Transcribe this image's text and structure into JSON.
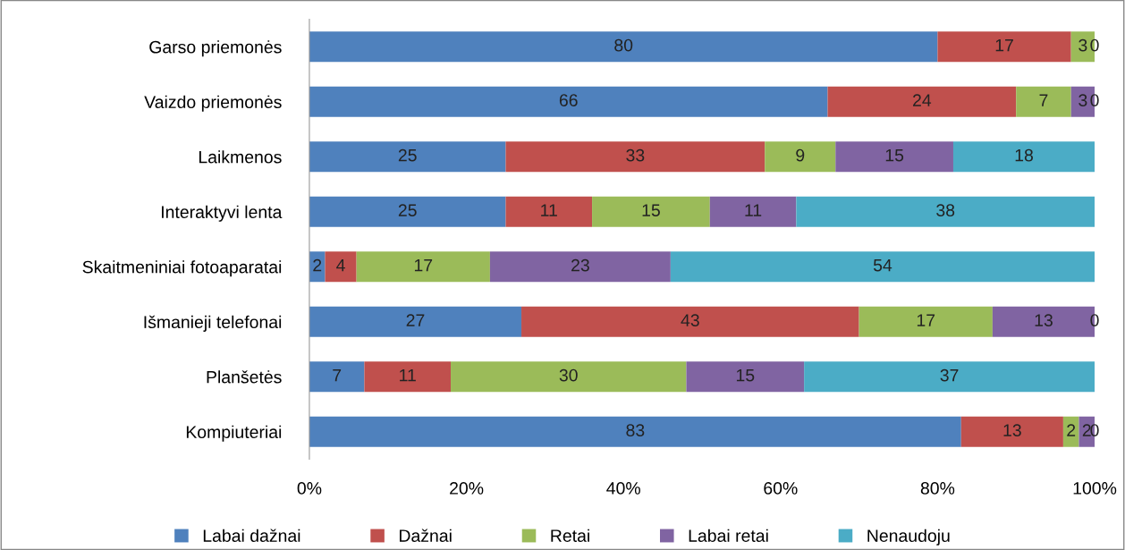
{
  "chart_data": {
    "type": "bar",
    "orientation": "horizontal",
    "stacked": true,
    "legend": "bottom",
    "grid": false,
    "categories": [
      "Garso priemonės",
      "Vaizdo priemonės",
      "Laikmenos",
      "Interaktyvi lenta",
      "Skaitmeniniai fotoaparatai",
      "Išmanieji telefonai",
      "Planšetės",
      "Kompiuteriai"
    ],
    "series": [
      {
        "name": "Labai dažnai",
        "color": "#4f81bd",
        "values": [
          80,
          66,
          25,
          25,
          2,
          27,
          7,
          83
        ],
        "value_labels": [
          "80",
          "66",
          "25",
          "25",
          "2",
          "27",
          "7",
          "83"
        ]
      },
      {
        "name": "Dažnai",
        "color": "#c0504d",
        "values": [
          17,
          24,
          33,
          11,
          4,
          43,
          11,
          13
        ],
        "value_labels": [
          "17",
          "24",
          "33",
          "11",
          "4",
          "43",
          "11",
          "13"
        ]
      },
      {
        "name": "Retai",
        "color": "#9bbb59",
        "values": [
          3,
          7,
          9,
          15,
          17,
          17,
          30,
          2
        ],
        "value_labels": [
          "3",
          "7",
          "9",
          "15",
          "17",
          "17",
          "30",
          "2"
        ]
      },
      {
        "name": "Labai retai",
        "color": "#8064a2",
        "values": [
          0,
          3,
          15,
          11,
          23,
          13,
          15,
          2
        ],
        "value_labels": [
          "0",
          "3",
          "15",
          "11",
          "23",
          "13",
          "15",
          "2"
        ]
      },
      {
        "name": "Nenaudoju",
        "color": "#4bacc6",
        "values": [
          0,
          0,
          18,
          38,
          54,
          0,
          37,
          0
        ],
        "value_labels": [
          null,
          "0",
          "18",
          "38",
          "54",
          "0",
          "37",
          "0"
        ]
      }
    ],
    "xlim": [
      0,
      100
    ],
    "xticks": [
      {
        "value": 0,
        "label": "0%"
      },
      {
        "value": 20,
        "label": "20%"
      },
      {
        "value": 40,
        "label": "40%"
      },
      {
        "value": 60,
        "label": "60%"
      },
      {
        "value": 80,
        "label": "80%"
      },
      {
        "value": 100,
        "label": "100%"
      }
    ]
  }
}
